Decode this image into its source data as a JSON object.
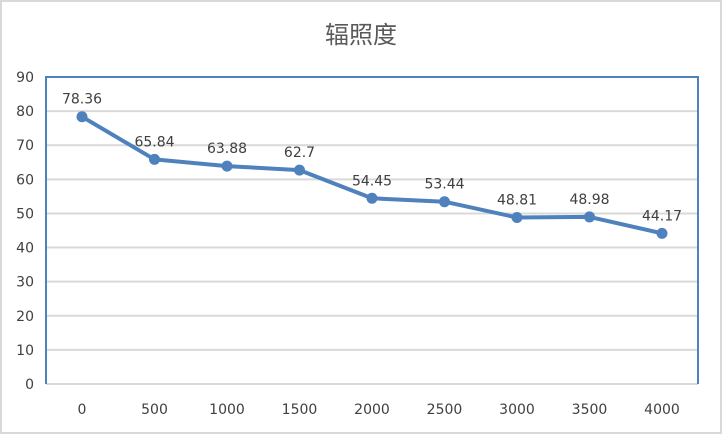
{
  "chart_data": {
    "type": "line",
    "title": "辐照度",
    "xlabel": "",
    "ylabel": "",
    "categories": [
      "0",
      "500",
      "1000",
      "1500",
      "2000",
      "2500",
      "3000",
      "3500",
      "4000"
    ],
    "series": [
      {
        "values": [
          78.36,
          65.84,
          63.88,
          62.7,
          54.45,
          53.44,
          48.81,
          48.98,
          44.17
        ],
        "labels": [
          "78.36",
          "65.84",
          "63.88",
          "62.7",
          "54.45",
          "53.44",
          "48.81",
          "48.98",
          "44.17"
        ]
      }
    ],
    "ylim": [
      0,
      90
    ],
    "yticks": [
      "0",
      "10",
      "20",
      "30",
      "40",
      "50",
      "60",
      "70",
      "80",
      "90"
    ],
    "grid": true,
    "legend": "none",
    "colors": {
      "line": "#4f81bd",
      "grid": "#d9d9d9",
      "plot_border": "#4f81bd",
      "text": "#404040",
      "title": "#595959"
    }
  }
}
